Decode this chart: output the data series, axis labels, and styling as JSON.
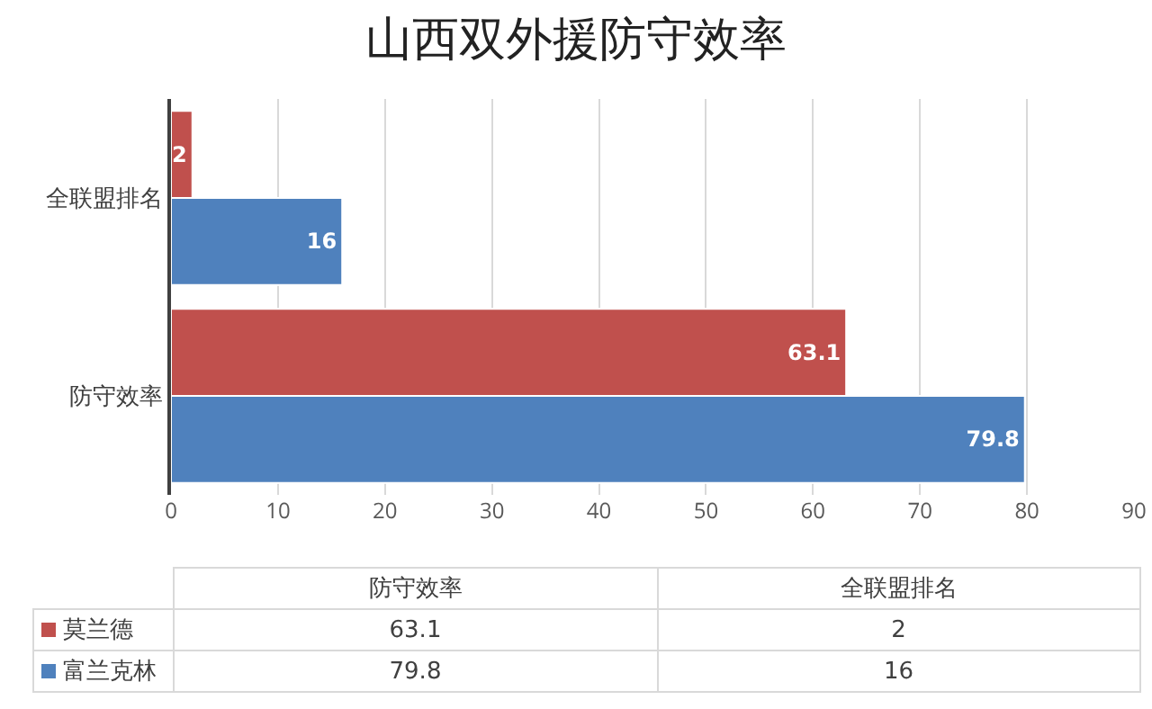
{
  "chart_data": {
    "type": "bar",
    "orientation": "horizontal",
    "title": "山西双外援防守效率",
    "categories": [
      "全联盟排名",
      "防守效率"
    ],
    "series": [
      {
        "name": "莫兰德",
        "color": "#c0504d",
        "values": [
          2,
          63.1
        ]
      },
      {
        "name": "富兰克林",
        "color": "#4f81bd",
        "values": [
          16,
          79.8
        ]
      }
    ],
    "xlim": [
      0,
      90
    ],
    "xticks": [
      0,
      10,
      20,
      30,
      40,
      50,
      60,
      70,
      80,
      90
    ],
    "grid": "x",
    "data_labels": true,
    "legend": "bottom",
    "annotations": [
      "63.1",
      "2",
      "79.8",
      "16"
    ]
  }
}
